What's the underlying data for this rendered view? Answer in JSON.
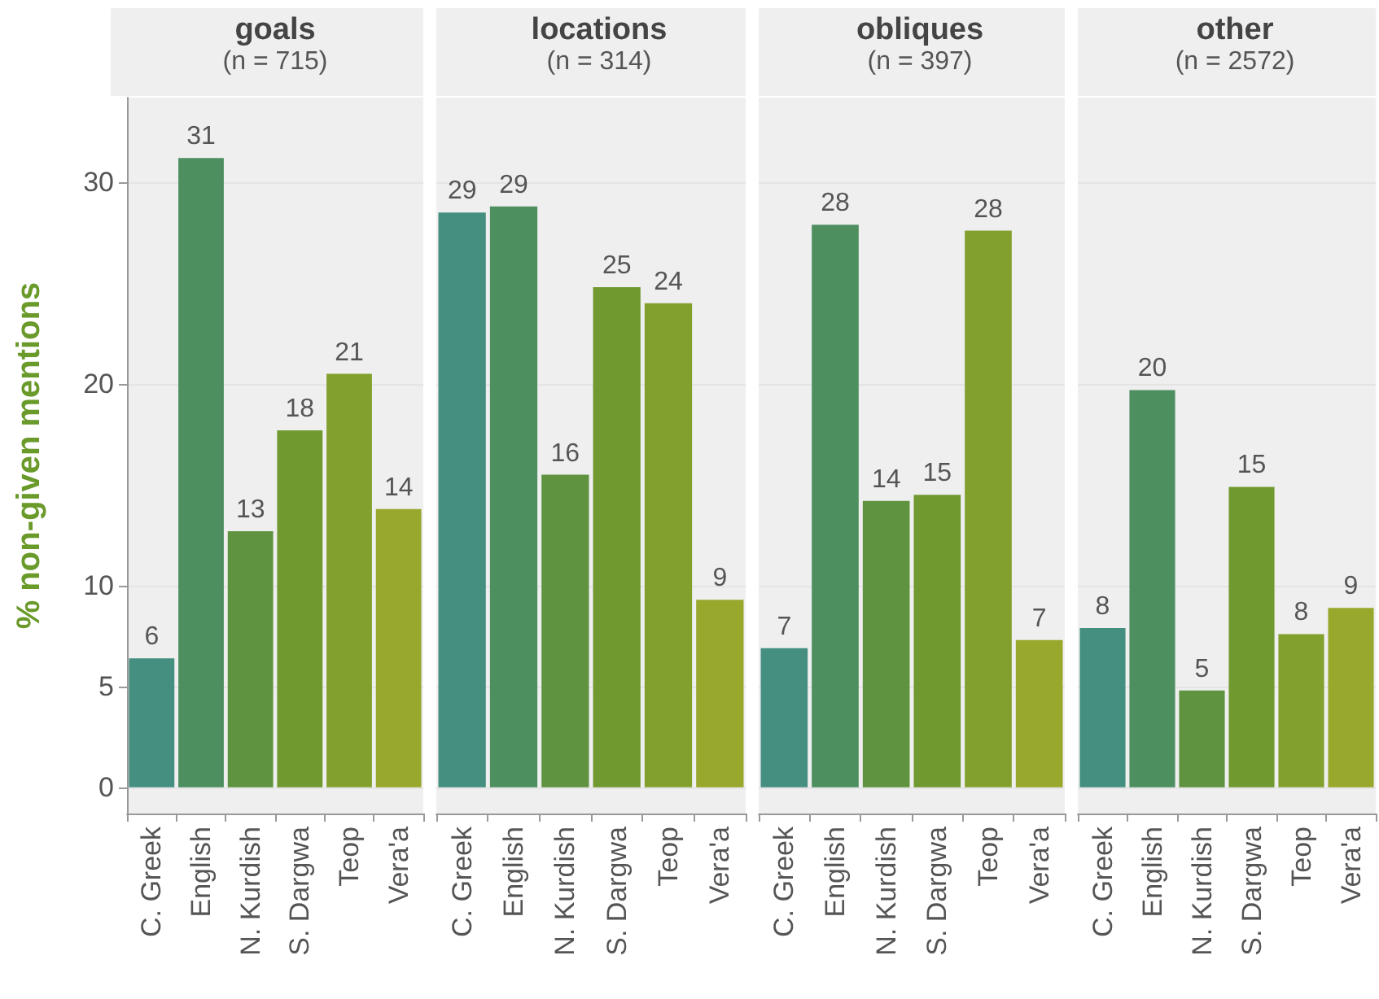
{
  "chart_data": [
    {
      "type": "bar",
      "title": "goals",
      "subtitle": "(n = 715)",
      "ylabel": "% non-given mentions",
      "categories": [
        "C. Greek",
        "English",
        "N. Kurdish",
        "S. Dargwa",
        "Teop",
        "Vera'a"
      ],
      "values": [
        6.4,
        31.2,
        12.7,
        17.7,
        20.5,
        13.8
      ],
      "value_labels": [
        "6",
        "31",
        "13",
        "18",
        "21",
        "14"
      ],
      "colors": [
        "#458f80",
        "#4e8f60",
        "#5f933f",
        "#70992f",
        "#82a02e",
        "#98a82c"
      ],
      "ylim": [
        -1.3,
        34.2
      ],
      "yticks": [
        0,
        5,
        10,
        20,
        30
      ],
      "grid": "y"
    },
    {
      "type": "bar",
      "title": "locations",
      "subtitle": "(n = 314)",
      "categories": [
        "C. Greek",
        "English",
        "N. Kurdish",
        "S. Dargwa",
        "Teop",
        "Vera'a"
      ],
      "values": [
        28.5,
        28.8,
        15.5,
        24.8,
        24.0,
        9.3
      ],
      "value_labels": [
        "29",
        "29",
        "16",
        "25",
        "24",
        "9"
      ],
      "colors": [
        "#458f80",
        "#4e8f60",
        "#5f933f",
        "#70992f",
        "#82a02e",
        "#98a82c"
      ],
      "ylim": [
        -1.3,
        34.2
      ],
      "yticks": [
        0,
        5,
        10,
        20,
        30
      ],
      "grid": "y",
      "tick_labels": "x"
    },
    {
      "type": "bar",
      "title": "obliques",
      "subtitle": "(n = 397)",
      "categories": [
        "C. Greek",
        "English",
        "N. Kurdish",
        "S. Dargwa",
        "Teop",
        "Vera'a"
      ],
      "values": [
        6.9,
        27.9,
        14.2,
        14.5,
        27.6,
        7.3
      ],
      "value_labels": [
        "7",
        "28",
        "14",
        "15",
        "28",
        "7"
      ],
      "colors": [
        "#458f80",
        "#4e8f60",
        "#5f933f",
        "#70992f",
        "#82a02e",
        "#98a82c"
      ],
      "ylim": [
        -1.3,
        34.2
      ],
      "yticks": [
        0,
        5,
        10,
        20,
        30
      ],
      "grid": "y",
      "tick_labels": "x"
    },
    {
      "type": "bar",
      "title": "other",
      "subtitle": "(n = 2572)",
      "categories": [
        "C. Greek",
        "English",
        "N. Kurdish",
        "S. Dargwa",
        "Teop",
        "Vera'a"
      ],
      "values": [
        7.9,
        19.7,
        4.8,
        14.9,
        7.6,
        8.9
      ],
      "value_labels": [
        "8",
        "20",
        "5",
        "15",
        "8",
        "9"
      ],
      "colors": [
        "#458f80",
        "#4e8f60",
        "#5f933f",
        "#70992f",
        "#82a02e",
        "#98a82c"
      ],
      "ylim": [
        -1.3,
        34.2
      ],
      "yticks": [
        0,
        5,
        10,
        20,
        30
      ],
      "grid": "y",
      "tick_labels": "x"
    }
  ]
}
